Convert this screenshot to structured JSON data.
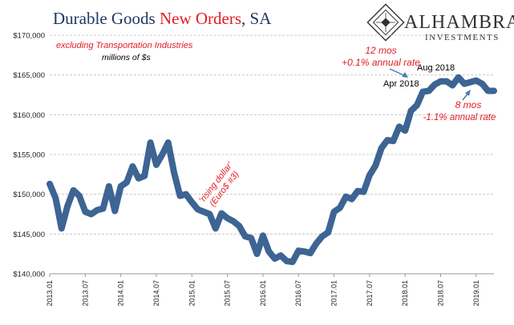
{
  "title": {
    "part1": "Durable Goods ",
    "part2": "New Orders",
    "part3": ", SA"
  },
  "logo": {
    "name": "ALHAMBRA",
    "sub": "INVESTMENTS"
  },
  "subtitle": "excluding Transportation  Industries",
  "units": "millions of $s",
  "annotations": {
    "rising_dollar_line1": "'rising dollar'",
    "rising_dollar_line2": "(Euro$ #3)",
    "mos12": "12 mos",
    "rate12": "+0.1% annual rate",
    "apr2018": "Apr 2018",
    "aug2018": "Aug 2018",
    "mos8": "8 mos",
    "rate8": "-1.1% annual  rate"
  },
  "colors": {
    "series": "#3d6493",
    "title": "#1f3864",
    "highlight": "#e31b23",
    "grid": "#bfbfbf",
    "arrow": "#4a7ab5"
  },
  "chart_data": {
    "type": "line",
    "title": "Durable Goods New Orders, SA",
    "ylabel": "",
    "xlabel": "",
    "ylim": [
      140000,
      170000
    ],
    "y_ticks": [
      "$140,000",
      "$145,000",
      "$150,000",
      "$155,000",
      "$160,000",
      "$165,000",
      "$170,000"
    ],
    "x_ticks": [
      "2013.01",
      "2013.07",
      "2014.01",
      "2014.07",
      "2015.01",
      "2015.07",
      "2016.01",
      "2016.07",
      "2017.01",
      "2017.07",
      "2018.01",
      "2018.07",
      "2019.01"
    ],
    "grid": true,
    "series": [
      {
        "name": "",
        "x_start": "2013.01",
        "frequency": "monthly",
        "values": [
          151300,
          149500,
          145700,
          148500,
          150500,
          149800,
          147800,
          147500,
          148000,
          148200,
          151000,
          147900,
          151000,
          151500,
          153500,
          152000,
          152300,
          156500,
          153700,
          155000,
          156500,
          152700,
          149800,
          150000,
          149000,
          148100,
          147800,
          147500,
          145700,
          147600,
          147000,
          146600,
          146000,
          144700,
          144500,
          142500,
          144800,
          142800,
          141900,
          142300,
          141600,
          141500,
          142900,
          142800,
          142600,
          143800,
          144700,
          145200,
          147800,
          148300,
          149700,
          149400,
          150400,
          150300,
          152400,
          153600,
          155800,
          156800,
          156700,
          158500,
          158000,
          160500,
          161200,
          162900,
          163000,
          163800,
          164200,
          164200,
          163700,
          164700,
          163900,
          164100,
          164300,
          163900,
          163000,
          163000
        ]
      }
    ]
  }
}
